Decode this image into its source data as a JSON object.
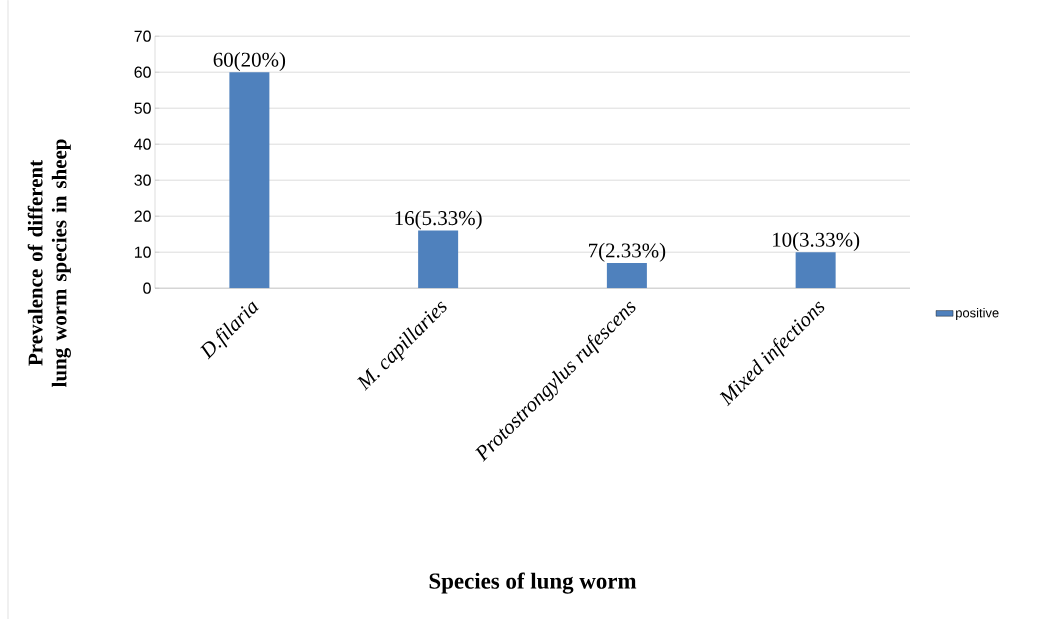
{
  "chart_data": {
    "type": "bar",
    "xlabel": "Species of lung worm",
    "ylabel": "Prevalence of different lung worm species in sheep",
    "categories": [
      "D.filaria",
      "M. capillaries",
      "Protostrongylus rufescens",
      "Mixed infections"
    ],
    "series": [
      {
        "name": "positive",
        "color": "#4f81bd",
        "values": [
          60,
          16,
          7,
          10
        ],
        "value_labels": [
          "60(20%)",
          "16(5.33%)",
          "7(2.33%)",
          "10(3.33%)"
        ]
      }
    ],
    "ylim": [
      0,
      70
    ],
    "yticks": [
      0,
      10,
      20,
      30,
      40,
      50,
      60,
      70
    ],
    "grid": "y",
    "legend": "right"
  }
}
